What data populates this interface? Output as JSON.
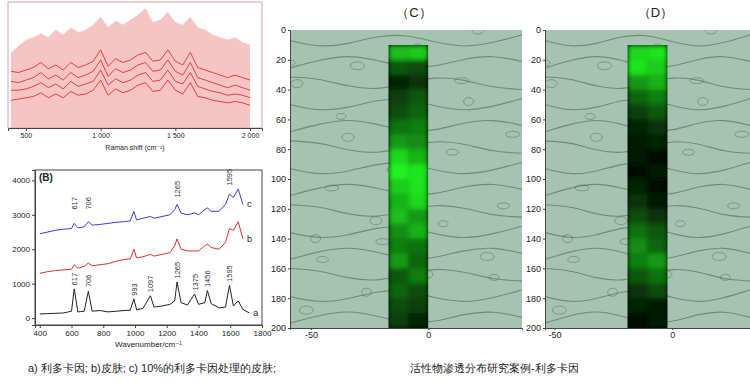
{
  "chart_data": [
    {
      "type": "line",
      "x_label": "Raman shift (cm⁻¹)",
      "x": [
        400,
        450,
        500,
        550,
        600,
        650,
        700,
        750,
        800,
        850,
        900,
        950,
        1000,
        1050,
        1100,
        1150,
        1200,
        1250,
        1300,
        1350,
        1400,
        1450,
        1500,
        1550,
        1600,
        1650,
        1700,
        1750,
        1800,
        1850,
        1900,
        1950,
        2000
      ],
      "xlim": [
        380,
        2080
      ],
      "ylim": [
        0,
        100
      ],
      "xticks": [
        500,
        {
          "value": 1000,
          "label": "1 000"
        },
        {
          "value": 1500,
          "label": "1 500"
        },
        {
          "value": 2000,
          "label": "2 000"
        }
      ],
      "tick_labels": "x",
      "series": [
        {
          "type": "area",
          "color": "#f7c4c4",
          "values": [
            60,
            65,
            70,
            72,
            75,
            72,
            78,
            74,
            80,
            76,
            78,
            82,
            88,
            80,
            85,
            82,
            86,
            90,
            95,
            84,
            86,
            92,
            84,
            82,
            88,
            80,
            78,
            74,
            72,
            70,
            72,
            68,
            66
          ]
        },
        {
          "type": "line",
          "color": "#e31a1c",
          "values": [
            45,
            44,
            46,
            48,
            52,
            47,
            50,
            46,
            52,
            48,
            50,
            53,
            62,
            49,
            55,
            52,
            54,
            58,
            60,
            53,
            54,
            62,
            53,
            50,
            60,
            48,
            46,
            44,
            42,
            40,
            42,
            40,
            38
          ]
        },
        {
          "type": "line",
          "color": "#e31a1c",
          "values": [
            37,
            36,
            38,
            40,
            44,
            39,
            42,
            38,
            44,
            40,
            42,
            45,
            54,
            41,
            47,
            44,
            46,
            50,
            52,
            45,
            46,
            54,
            45,
            42,
            52,
            40,
            38,
            36,
            34,
            32,
            34,
            32,
            30
          ]
        },
        {
          "type": "line",
          "color": "#e31a1c",
          "values": [
            30,
            30,
            31,
            33,
            36,
            32,
            35,
            31,
            37,
            33,
            35,
            37,
            46,
            34,
            39,
            36,
            38,
            42,
            44,
            37,
            38,
            46,
            37,
            35,
            44,
            33,
            31,
            29,
            28,
            26,
            27,
            26,
            24
          ]
        },
        {
          "type": "line",
          "color": "#e31a1c",
          "values": [
            22,
            23,
            24,
            25,
            28,
            24,
            27,
            24,
            29,
            26,
            27,
            30,
            38,
            26,
            31,
            28,
            30,
            34,
            36,
            29,
            30,
            38,
            30,
            27,
            36,
            25,
            24,
            22,
            21,
            20,
            21,
            20,
            18
          ]
        }
      ]
    },
    {
      "type": "line",
      "title": "(B)",
      "x_label": "Wavenumber/cm⁻¹",
      "x": [
        400,
        450,
        500,
        550,
        600,
        617,
        640,
        680,
        706,
        730,
        780,
        830,
        880,
        930,
        970,
        993,
        1010,
        1050,
        1097,
        1120,
        1170,
        1220,
        1250,
        1265,
        1290,
        1330,
        1375,
        1400,
        1440,
        1456,
        1480,
        1530,
        1570,
        1595,
        1620,
        1650,
        1680,
        1720,
        1760,
        1800
      ],
      "xlim": [
        370,
        1800
      ],
      "ylim": [
        -200,
        4300
      ],
      "xticks": [
        400,
        600,
        800,
        1000,
        1200,
        1400,
        1600,
        1800
      ],
      "yticks": [
        0,
        1000,
        2000,
        3000,
        4000
      ],
      "series": [
        {
          "name": "c",
          "color": "#3b3bdc",
          "values": [
            2450,
            2500,
            2550,
            2580,
            2600,
            2750,
            2620,
            2650,
            2800,
            2700,
            2720,
            2750,
            2780,
            2800,
            2820,
            3100,
            2850,
            2900,
            2950,
            2900,
            2950,
            3000,
            3150,
            3300,
            3050,
            3000,
            3050,
            3000,
            3150,
            3200,
            3100,
            3100,
            3300,
            3600,
            3500,
            3750,
            3300,
            null,
            null,
            null
          ]
        },
        {
          "name": "b",
          "color": "#e0302a",
          "values": [
            1300,
            1350,
            1380,
            1400,
            1420,
            1550,
            1450,
            1500,
            1600,
            1520,
            1550,
            1580,
            1650,
            1700,
            1720,
            2000,
            1750,
            1780,
            1850,
            1800,
            1850,
            1900,
            2100,
            2300,
            2000,
            1950,
            1950,
            1950,
            2100,
            2150,
            2050,
            2000,
            2200,
            2600,
            2550,
            2800,
            2300,
            null,
            null,
            null
          ]
        },
        {
          "name": "a",
          "color": "#222222",
          "values": [
            120,
            130,
            140,
            150,
            200,
            850,
            180,
            200,
            780,
            200,
            220,
            180,
            200,
            220,
            230,
            560,
            240,
            280,
            650,
            320,
            350,
            400,
            500,
            1050,
            450,
            380,
            700,
            400,
            450,
            800,
            420,
            300,
            320,
            950,
            350,
            500,
            250,
            150,
            null,
            null
          ]
        }
      ],
      "annotations": [
        {
          "text": "617",
          "x": 617,
          "y": 3150
        },
        {
          "text": "706",
          "x": 706,
          "y": 3150
        },
        {
          "text": "1265",
          "x": 1265,
          "y": 3500
        },
        {
          "text": "1595",
          "x": 1595,
          "y": 3850
        },
        {
          "text": "617",
          "x": 617,
          "y": 950
        },
        {
          "text": "706",
          "x": 706,
          "y": 900
        },
        {
          "text": "993",
          "x": 993,
          "y": 650
        },
        {
          "text": "1097",
          "x": 1097,
          "y": 750
        },
        {
          "text": "1265",
          "x": 1265,
          "y": 1150
        },
        {
          "text": "1375",
          "x": 1375,
          "y": 800
        },
        {
          "text": "1456",
          "x": 1456,
          "y": 900
        },
        {
          "text": "1595",
          "x": 1595,
          "y": 1050
        }
      ]
    },
    {
      "type": "heatmap",
      "title": "（C）",
      "xlim": [
        -59,
        40
      ],
      "ylim": [
        0,
        200
      ],
      "xticks": [
        -50,
        0
      ],
      "yticks": [
        0,
        20,
        40,
        60,
        80,
        100,
        120,
        140,
        160,
        180,
        200
      ],
      "color": "#22ff22",
      "zlim": [
        0,
        1
      ],
      "cell_x": [
        -17,
        -8.5,
        0
      ],
      "cell_y": [
        10,
        20,
        30,
        40,
        50,
        60,
        70,
        80,
        90,
        100,
        110,
        120,
        130,
        140,
        150,
        160,
        170,
        180,
        190,
        200
      ],
      "cells": [
        [
          0.75,
          0.8
        ],
        [
          0.35,
          0.3
        ],
        [
          0.15,
          0.2
        ],
        [
          0.25,
          0.35
        ],
        [
          0.3,
          0.4
        ],
        [
          0.45,
          0.5
        ],
        [
          0.6,
          0.55
        ],
        [
          0.85,
          0.7
        ],
        [
          0.95,
          0.9
        ],
        [
          0.8,
          0.9
        ],
        [
          0.7,
          0.85
        ],
        [
          0.75,
          0.6
        ],
        [
          0.55,
          0.7
        ],
        [
          0.5,
          0.45
        ],
        [
          0.6,
          0.4
        ],
        [
          0.35,
          0.5
        ],
        [
          0.4,
          0.3
        ],
        [
          0.3,
          0.25
        ],
        [
          0.25,
          0.15
        ]
      ]
    },
    {
      "type": "heatmap",
      "title": "（D）",
      "xlim": [
        -54,
        33
      ],
      "ylim": [
        0,
        200
      ],
      "xticks": [
        -50,
        0
      ],
      "yticks": [
        0,
        20,
        40,
        60,
        80,
        100,
        120,
        140,
        160,
        180,
        200
      ],
      "color": "#22ff22",
      "zlim": [
        0,
        1
      ],
      "cell_x": [
        -19,
        -10.5,
        -2
      ],
      "cell_y": [
        10,
        20,
        30,
        40,
        50,
        60,
        70,
        80,
        90,
        100,
        110,
        120,
        130,
        140,
        150,
        160,
        170,
        180,
        190,
        200
      ],
      "cells": [
        [
          0.85,
          0.9
        ],
        [
          0.9,
          0.8
        ],
        [
          0.6,
          0.7
        ],
        [
          0.4,
          0.5
        ],
        [
          0.25,
          0.35
        ],
        [
          0.15,
          0.2
        ],
        [
          0.1,
          0.15
        ],
        [
          0.1,
          0.05
        ],
        [
          0.05,
          0.1
        ],
        [
          0.15,
          0.05
        ],
        [
          0.2,
          0.1
        ],
        [
          0.3,
          0.2
        ],
        [
          0.45,
          0.35
        ],
        [
          0.55,
          0.4
        ],
        [
          0.5,
          0.6
        ],
        [
          0.35,
          0.45
        ],
        [
          0.2,
          0.3
        ],
        [
          0.15,
          0.1
        ],
        [
          0.05,
          0.1
        ]
      ]
    }
  ],
  "captions": [
    "a) 利多卡因; b)皮肤; c) 10%的利多卡因处理的皮肤;",
    "活性物渗透分布研究案例-利多卡因"
  ]
}
